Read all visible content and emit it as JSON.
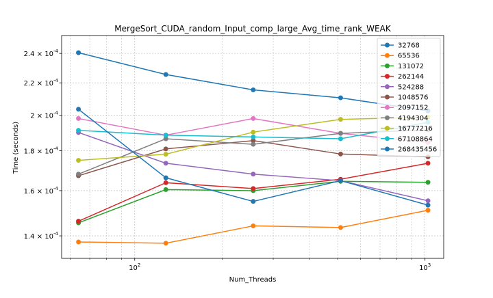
{
  "chart_data": {
    "type": "line",
    "title": "MergeSort_CUDA_random_Input_comp_large_Avg_time_rank_WEAK",
    "xlabel": "Num_Threads",
    "ylabel": "Time (seconds)",
    "x_scale": "log",
    "y_scale": "log",
    "xlim": [
      56,
      1160
    ],
    "ylim": [
      0.000131,
      0.000253
    ],
    "x_ticks": [
      {
        "value": 100,
        "label": "10^2"
      },
      {
        "value": 1000,
        "label": "10^3"
      }
    ],
    "y_ticks": [
      {
        "value": 0.00014,
        "label": "1.4 × 10^-4"
      },
      {
        "value": 0.00016,
        "label": "1.6 × 10^-4"
      },
      {
        "value": 0.00018,
        "label": "1.8 × 10^-4"
      },
      {
        "value": 0.0002,
        "label": "2 × 10^-4"
      },
      {
        "value": 0.00022,
        "label": "2.2 × 10^-4"
      },
      {
        "value": 0.00024,
        "label": "2.4 × 10^-4"
      }
    ],
    "grid": true,
    "legend_position": "top-right",
    "x": [
      64,
      128,
      256,
      512,
      1024
    ],
    "series": [
      {
        "name": "32768",
        "color": "#1f77b4",
        "values": [
          0.0002405,
          0.0002255,
          0.0002155,
          0.0002105,
          0.0002025
        ]
      },
      {
        "name": "65536",
        "color": "#ff7f0e",
        "values": [
          0.0001375,
          0.000137,
          0.0001442,
          0.0001435,
          0.000151
        ]
      },
      {
        "name": "131072",
        "color": "#2ca02c",
        "values": [
          0.0001455,
          0.0001605,
          0.00016,
          0.0001645,
          0.000164
        ]
      },
      {
        "name": "262144",
        "color": "#d62728",
        "values": [
          0.0001462,
          0.0001638,
          0.000161,
          0.0001655,
          0.0001735
        ]
      },
      {
        "name": "524288",
        "color": "#9467bd",
        "values": [
          0.00019,
          0.0001735,
          0.000168,
          0.0001648,
          0.0001553
        ]
      },
      {
        "name": "1048576",
        "color": "#8c564b",
        "values": [
          0.0001672,
          0.000181,
          0.0001855,
          0.0001783,
          0.0001768
        ]
      },
      {
        "name": "2097152",
        "color": "#e377c2",
        "values": [
          0.000198,
          0.0001885,
          0.000198,
          0.0001895,
          0.0001845
        ]
      },
      {
        "name": "4194304",
        "color": "#7f7f7f",
        "values": [
          0.000168,
          0.0001865,
          0.0001835,
          0.0001895,
          0.0001915
        ]
      },
      {
        "name": "16777216",
        "color": "#bcbd22",
        "values": [
          0.000175,
          0.0001782,
          0.0001902,
          0.0001975,
          0.0001988
        ]
      },
      {
        "name": "67108864",
        "color": "#17becf",
        "values": [
          0.0001912,
          0.0001885,
          0.0001875,
          0.0001865,
          0.0001958
        ]
      },
      {
        "name": "268435456",
        "color": "#1f77b4",
        "values": [
          0.0002035,
          0.0001662,
          0.000155,
          0.0001648,
          0.0001533
        ]
      }
    ]
  }
}
